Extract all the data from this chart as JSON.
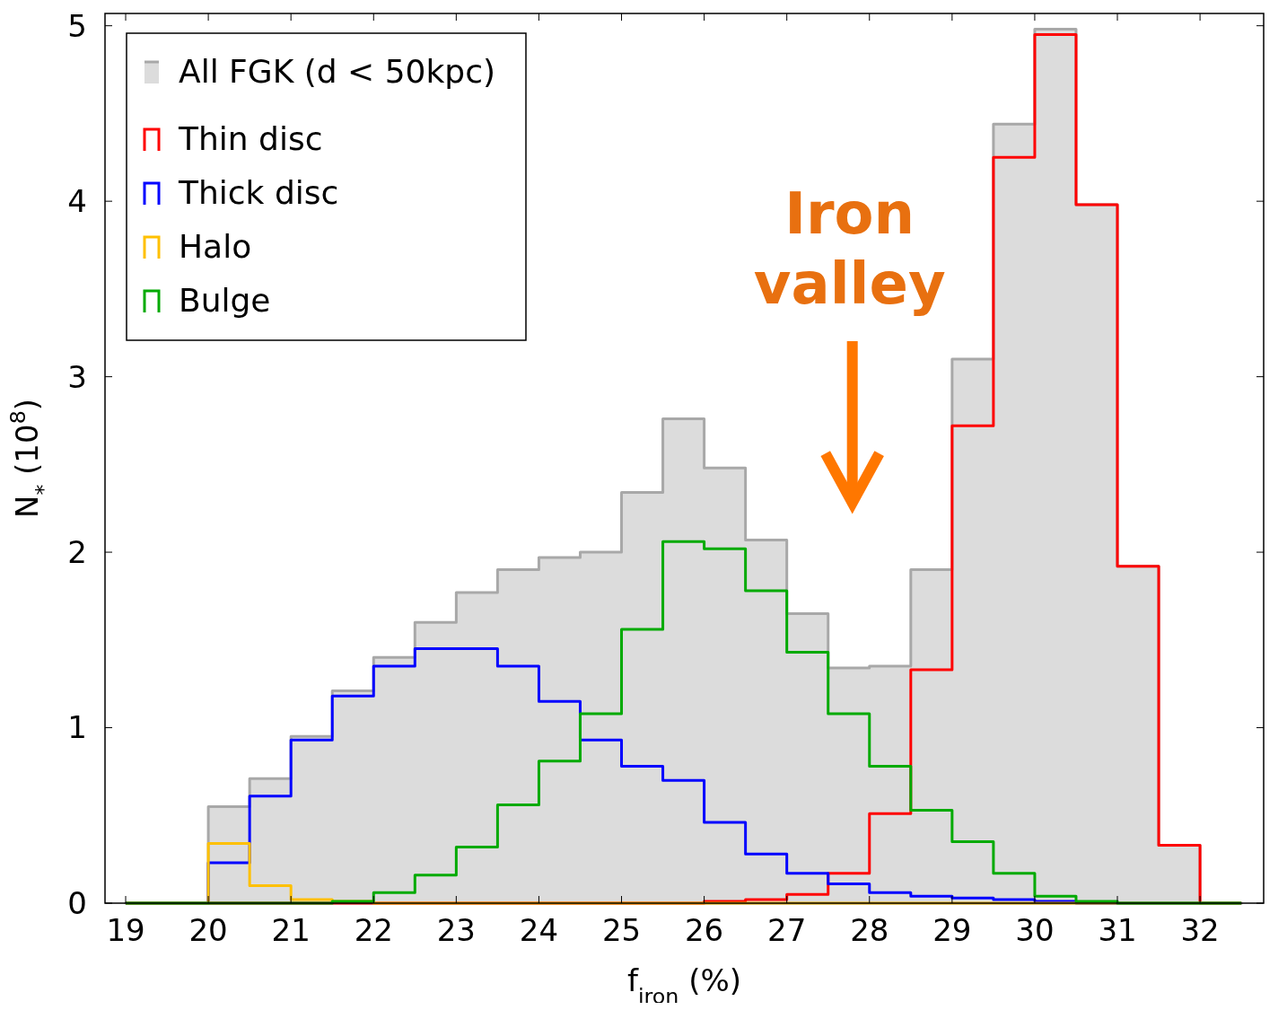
{
  "chart_data": {
    "type": "histogram",
    "xlabel": "f$_{iron}$ (%)",
    "ylabel": "N$_{*}$ (10$^{8}$)",
    "bins": [
      19,
      19.5,
      20,
      20.5,
      21,
      21.5,
      22,
      22.5,
      23,
      23.5,
      24,
      24.5,
      25,
      25.5,
      26,
      26.5,
      27,
      27.5,
      28,
      28.5,
      29,
      29.5,
      30,
      30.5,
      31,
      31.5,
      32,
      32.5
    ],
    "series": [
      {
        "name": "All FGK (d < 50kpc)",
        "color": "#a8a8a8",
        "values": [
          0,
          0,
          0.55,
          0.71,
          0.95,
          1.21,
          1.4,
          1.6,
          1.77,
          1.9,
          1.97,
          2.0,
          2.34,
          2.76,
          2.48,
          2.07,
          1.65,
          1.34,
          1.35,
          1.9,
          3.1,
          4.44,
          4.98,
          3.98,
          1.92,
          0.33,
          0
        ]
      },
      {
        "name": "Thin disc",
        "color": "#ff0000",
        "values": [
          0,
          0,
          0,
          0,
          0,
          0,
          0,
          0,
          0,
          0,
          0,
          0,
          0,
          0,
          0.01,
          0.02,
          0.05,
          0.17,
          0.51,
          1.33,
          2.72,
          4.25,
          4.95,
          3.98,
          1.92,
          0.33,
          0
        ]
      },
      {
        "name": "Thick disc",
        "color": "#0000ff",
        "values": [
          0,
          0,
          0.23,
          0.61,
          0.93,
          1.18,
          1.35,
          1.45,
          1.45,
          1.35,
          1.15,
          0.93,
          0.78,
          0.7,
          0.46,
          0.28,
          0.17,
          0.11,
          0.06,
          0.04,
          0.03,
          0.02,
          0.01,
          0,
          0,
          0,
          0
        ]
      },
      {
        "name": "Halo",
        "color": "#ffc000",
        "values": [
          0,
          0,
          0.34,
          0.1,
          0.02,
          0.01,
          0,
          0,
          0,
          0,
          0,
          0,
          0,
          0,
          0,
          0,
          0,
          0,
          0,
          0,
          0,
          0,
          0,
          0,
          0,
          0,
          0
        ]
      },
      {
        "name": "Bulge",
        "color": "#00aa00",
        "values": [
          0,
          0,
          0,
          0,
          0,
          0.01,
          0.06,
          0.16,
          0.32,
          0.56,
          0.81,
          1.08,
          1.56,
          2.06,
          2.02,
          1.78,
          1.43,
          1.08,
          0.78,
          0.53,
          0.35,
          0.17,
          0.04,
          0.01,
          0,
          0,
          0
        ]
      }
    ],
    "xlim": [
      18.75,
      32.77
    ],
    "ylim": [
      0,
      5.07
    ],
    "xticks": [
      19,
      20,
      21,
      22,
      23,
      24,
      25,
      26,
      27,
      28,
      29,
      30,
      31,
      32
    ],
    "yticks": [
      0,
      1,
      2,
      3,
      4,
      5
    ],
    "annotations": [
      "Iron valley"
    ],
    "legend": "top left",
    "grid": false
  }
}
